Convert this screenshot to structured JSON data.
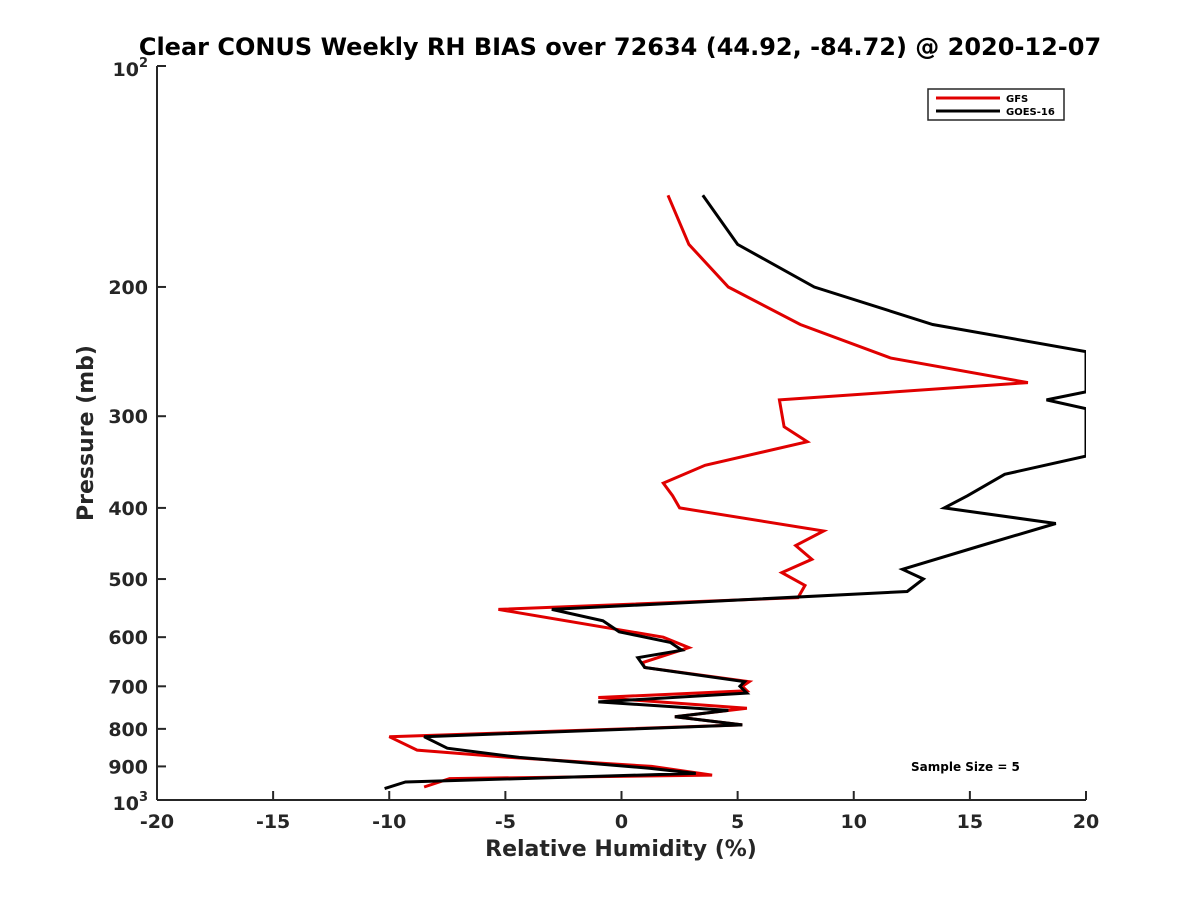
{
  "chart_data": {
    "type": "line",
    "title": "Clear CONUS Weekly RH BIAS over 72634 (44.92, -84.72) @ 2020-12-07",
    "xlabel": "Relative Humidity (%)",
    "ylabel": "Pressure (mb)",
    "xlim": [
      -20,
      20
    ],
    "ylim": [
      100,
      1000
    ],
    "yscale": "log",
    "y_reversed": true,
    "x_ticks": [
      -20,
      -15,
      -10,
      -5,
      0,
      5,
      10,
      15,
      20
    ],
    "x_tick_labels": [
      "-20",
      "-15",
      "-10",
      "-5",
      "0",
      "5",
      "10",
      "15",
      "20"
    ],
    "y_ticks": [
      200,
      300,
      400,
      500,
      600,
      700,
      800,
      900
    ],
    "y_tick_labels": [
      "200",
      "300",
      "400",
      "500",
      "600",
      "700",
      "800",
      "900"
    ],
    "y_limit_labels": {
      "top_base": "10",
      "top_exp": "2",
      "bottom_base": "10",
      "bottom_exp": "3"
    },
    "legend_position": "top-right",
    "annotation": "Sample Size = 5",
    "series": [
      {
        "name": "GFS",
        "color": "#e00000",
        "points": [
          [
            2.0,
            150
          ],
          [
            2.9,
            175
          ],
          [
            4.6,
            200
          ],
          [
            7.7,
            225
          ],
          [
            11.6,
            250
          ],
          [
            17.5,
            270
          ],
          [
            6.8,
            285
          ],
          [
            7.0,
            310
          ],
          [
            8.0,
            325
          ],
          [
            3.6,
            350
          ],
          [
            1.8,
            370
          ],
          [
            2.2,
            385
          ],
          [
            2.5,
            400
          ],
          [
            8.7,
            430
          ],
          [
            7.5,
            450
          ],
          [
            8.2,
            470
          ],
          [
            6.9,
            490
          ],
          [
            7.9,
            510
          ],
          [
            7.6,
            530
          ],
          [
            -5.3,
            550
          ],
          [
            1.8,
            600
          ],
          [
            2.9,
            620
          ],
          [
            0.9,
            650
          ],
          [
            1.0,
            660
          ],
          [
            5.5,
            690
          ],
          [
            5.2,
            700
          ],
          [
            5.4,
            710
          ],
          [
            -1.0,
            725
          ],
          [
            5.4,
            750
          ],
          [
            2.3,
            770
          ],
          [
            5.2,
            790
          ],
          [
            -10.0,
            820
          ],
          [
            -8.8,
            855
          ],
          [
            -4.8,
            875
          ],
          [
            1.3,
            900
          ],
          [
            3.9,
            925
          ],
          [
            -7.4,
            935
          ],
          [
            -8.5,
            960
          ]
        ]
      },
      {
        "name": "GOES-16",
        "color": "#000000",
        "points": [
          [
            3.5,
            150
          ],
          [
            5.0,
            175
          ],
          [
            8.3,
            200
          ],
          [
            13.4,
            225
          ],
          [
            20.0,
            245
          ],
          [
            20.0,
            278
          ],
          [
            18.3,
            285
          ],
          [
            20.0,
            293
          ],
          [
            20.0,
            340
          ],
          [
            16.5,
            360
          ],
          [
            14.9,
            385
          ],
          [
            13.9,
            400
          ],
          [
            18.7,
            420
          ],
          [
            15.5,
            450
          ],
          [
            12.1,
            485
          ],
          [
            13.0,
            500
          ],
          [
            12.3,
            520
          ],
          [
            -3.0,
            550
          ],
          [
            -0.8,
            570
          ],
          [
            -0.1,
            590
          ],
          [
            2.1,
            610
          ],
          [
            2.6,
            625
          ],
          [
            0.7,
            640
          ],
          [
            1.0,
            660
          ],
          [
            5.3,
            690
          ],
          [
            5.1,
            700
          ],
          [
            5.4,
            715
          ],
          [
            -1.0,
            735
          ],
          [
            4.6,
            755
          ],
          [
            2.3,
            770
          ],
          [
            5.2,
            790
          ],
          [
            -8.5,
            820
          ],
          [
            -7.5,
            850
          ],
          [
            -4.4,
            875
          ],
          [
            1.2,
            905
          ],
          [
            3.2,
            920
          ],
          [
            -9.3,
            945
          ],
          [
            -10.2,
            965
          ]
        ]
      }
    ]
  }
}
